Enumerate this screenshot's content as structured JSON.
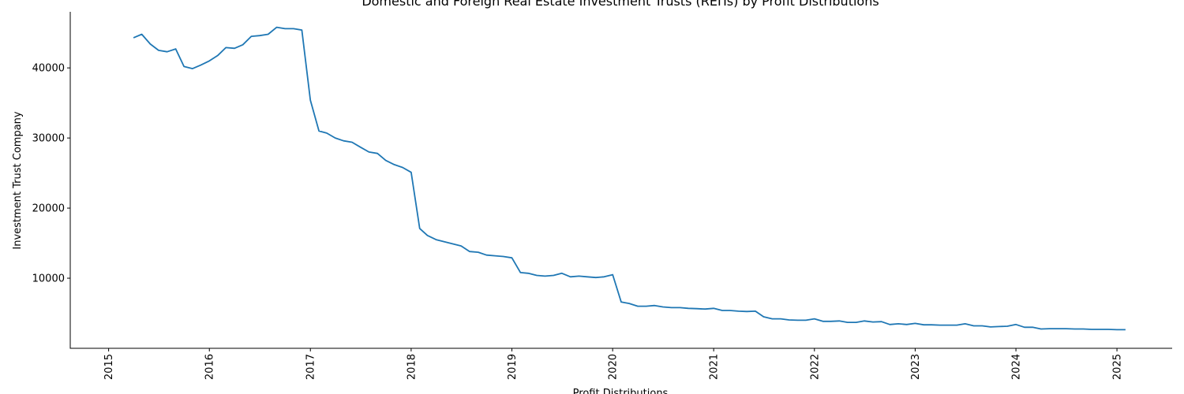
{
  "chart_data": {
    "type": "line",
    "title": "Domestic and Foreign Real Estate Investment Trusts (REITs) by Profit Distributions",
    "xlabel": "Profit Distributions",
    "ylabel": "Investment Trust Company",
    "xlim": [
      "2014-08-15",
      "2025-07-20"
    ],
    "ylim": [
      0,
      48000
    ],
    "x_ticks": [
      "2015",
      "2016",
      "2017",
      "2018",
      "2019",
      "2020",
      "2021",
      "2022",
      "2023",
      "2024",
      "2025"
    ],
    "y_ticks": [
      10000,
      20000,
      30000,
      40000
    ],
    "grid": false,
    "legend": "none",
    "line_color": "#1f77b4",
    "series": [
      {
        "x": [
          "2015-04",
          "2015-05",
          "2015-06",
          "2015-07",
          "2015-08",
          "2015-09",
          "2015-10",
          "2015-11",
          "2015-12",
          "2016-01",
          "2016-02",
          "2016-03",
          "2016-04",
          "2016-05",
          "2016-06",
          "2016-07",
          "2016-08",
          "2016-09",
          "2016-10",
          "2016-11",
          "2016-12",
          "2017-01",
          "2017-02",
          "2017-03",
          "2017-04",
          "2017-05",
          "2017-06",
          "2017-07",
          "2017-08",
          "2017-09",
          "2017-10",
          "2017-11",
          "2017-12",
          "2018-01",
          "2018-02",
          "2018-03",
          "2018-04",
          "2018-05",
          "2018-06",
          "2018-07",
          "2018-08",
          "2018-09",
          "2018-10",
          "2018-11",
          "2018-12",
          "2019-01",
          "2019-02",
          "2019-03",
          "2019-04",
          "2019-05",
          "2019-06",
          "2019-07",
          "2019-08",
          "2019-09",
          "2019-10",
          "2019-11",
          "2019-12",
          "2020-01",
          "2020-02",
          "2020-03",
          "2020-04",
          "2020-05",
          "2020-06",
          "2020-07",
          "2020-08",
          "2020-09",
          "2020-10",
          "2020-11",
          "2020-12",
          "2021-01",
          "2021-02",
          "2021-03",
          "2021-04",
          "2021-05",
          "2021-06",
          "2021-07",
          "2021-08",
          "2021-09",
          "2021-10",
          "2021-11",
          "2021-12",
          "2022-01",
          "2022-02",
          "2022-03",
          "2022-04",
          "2022-05",
          "2022-06",
          "2022-07",
          "2022-08",
          "2022-09",
          "2022-10",
          "2022-11",
          "2022-12",
          "2023-01",
          "2023-02",
          "2023-03",
          "2023-04",
          "2023-05",
          "2023-06",
          "2023-07",
          "2023-08",
          "2023-09",
          "2023-10",
          "2023-11",
          "2023-12",
          "2024-01",
          "2024-02",
          "2024-03",
          "2024-04",
          "2024-05",
          "2024-06",
          "2024-07",
          "2024-08",
          "2024-09",
          "2024-10",
          "2024-11",
          "2024-12",
          "2025-01",
          "2025-02"
        ],
        "values": [
          44300,
          44800,
          43400,
          42500,
          42300,
          42700,
          40200,
          39900,
          40400,
          41000,
          41800,
          42900,
          42800,
          43300,
          44500,
          44600,
          44800,
          45800,
          45600,
          45600,
          45400,
          35400,
          31000,
          30700,
          30000,
          29600,
          29400,
          28700,
          28000,
          27800,
          26800,
          26200,
          25800,
          25100,
          17100,
          16100,
          15500,
          15200,
          14900,
          14600,
          13800,
          13700,
          13300,
          13200,
          13100,
          12900,
          10800,
          10700,
          10400,
          10300,
          10400,
          10700,
          10200,
          10300,
          10200,
          10100,
          10200,
          10500,
          6600,
          6400,
          6000,
          6000,
          6100,
          5900,
          5800,
          5800,
          5700,
          5650,
          5600,
          5700,
          5400,
          5400,
          5300,
          5250,
          5300,
          4500,
          4200,
          4200,
          4050,
          4000,
          4000,
          4200,
          3850,
          3850,
          3900,
          3700,
          3700,
          3900,
          3750,
          3800,
          3400,
          3500,
          3400,
          3550,
          3350,
          3350,
          3300,
          3300,
          3300,
          3500,
          3200,
          3200,
          3050,
          3100,
          3150,
          3400,
          3000,
          3000,
          2750,
          2800,
          2800,
          2800,
          2750,
          2750,
          2700,
          2700,
          2700,
          2650,
          2650
        ]
      }
    ]
  }
}
